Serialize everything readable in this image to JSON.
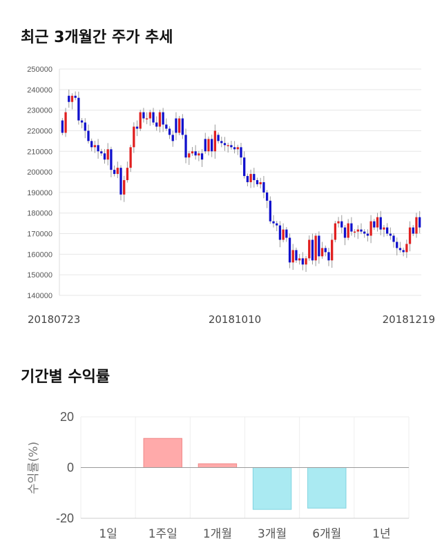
{
  "titles": {
    "candle": "최근 3개월간 주가 추세",
    "returns": "기간별 수익률"
  },
  "colors": {
    "up": "#e02020",
    "down": "#1010cc",
    "wick": "#999999",
    "pos_bar": "#ffaaaa",
    "neg_bar": "#aaeaf2"
  },
  "chart_data": [
    {
      "type": "candlestick",
      "title": "최근 3개월간 주가 추세",
      "ylim": [
        140000,
        250000
      ],
      "y_ticks": [
        250000,
        240000,
        230000,
        220000,
        210000,
        200000,
        190000,
        180000,
        170000,
        160000,
        150000,
        140000
      ],
      "x_labels": [
        "20180723",
        "20181010",
        "20181219"
      ],
      "grid": true,
      "closes": [
        219000,
        229000,
        234000,
        237000,
        236000,
        225000,
        224000,
        220000,
        215000,
        212000,
        213000,
        210000,
        209000,
        206000,
        211000,
        201000,
        199000,
        202000,
        189000,
        196000,
        202000,
        212000,
        222000,
        221000,
        229000,
        226000,
        226000,
        229000,
        224000,
        222000,
        229000,
        223000,
        221000,
        218000,
        215000,
        219000,
        226000,
        218000,
        207000,
        209000,
        210000,
        208000,
        209000,
        206000,
        210000,
        216000,
        210000,
        220000,
        215000,
        214000,
        213000,
        213000,
        212000,
        211000,
        212000,
        207000,
        198000,
        195000,
        199000,
        196000,
        194000,
        195000,
        190000,
        186000,
        176000,
        175000,
        174000,
        167000,
        172000,
        168000,
        156000,
        162000,
        157000,
        158000,
        155000,
        158000,
        167000,
        157000,
        169000,
        159000,
        163000,
        161000,
        157000,
        167000,
        175000,
        176000,
        173000,
        168000,
        175000,
        171000,
        171000,
        172000,
        171000,
        170000,
        169000,
        176000,
        173000,
        178000,
        172000,
        173000,
        170000,
        169000,
        166000,
        163000,
        162000,
        161000,
        165000,
        173000,
        170000,
        178000,
        173000
      ],
      "opens": [
        225000,
        219000,
        237000,
        234000,
        237000,
        236000,
        225000,
        224000,
        220000,
        215000,
        212000,
        213000,
        210000,
        209000,
        206000,
        211000,
        201000,
        199000,
        202000,
        189000,
        196000,
        202000,
        212000,
        222000,
        221000,
        229000,
        226000,
        226000,
        229000,
        224000,
        222000,
        229000,
        223000,
        221000,
        218000,
        226000,
        219000,
        226000,
        218000,
        207000,
        209000,
        210000,
        208000,
        209000,
        216000,
        210000,
        216000,
        210000,
        218000,
        215000,
        214000,
        213000,
        213000,
        212000,
        211000,
        212000,
        207000,
        198000,
        195000,
        199000,
        196000,
        194000,
        195000,
        190000,
        186000,
        176000,
        175000,
        174000,
        167000,
        172000,
        168000,
        156000,
        162000,
        157000,
        158000,
        155000,
        158000,
        167000,
        157000,
        169000,
        159000,
        163000,
        161000,
        157000,
        167000,
        175000,
        176000,
        173000,
        168000,
        175000,
        171000,
        171000,
        172000,
        171000,
        170000,
        169000,
        176000,
        173000,
        178000,
        172000,
        173000,
        170000,
        169000,
        166000,
        163000,
        162000,
        161000,
        165000,
        173000,
        170000,
        178000
      ]
    },
    {
      "type": "bar",
      "title": "기간별 수익률",
      "ylabel": "수익률(%)",
      "ylim": [
        -20,
        20
      ],
      "y_ticks": [
        20,
        0,
        -20
      ],
      "categories": [
        "1일",
        "1주일",
        "1개월",
        "3개월",
        "6개월",
        "1년"
      ],
      "values": [
        0,
        11.5,
        1.5,
        -16.5,
        -16.0,
        0
      ],
      "grid": true
    }
  ]
}
